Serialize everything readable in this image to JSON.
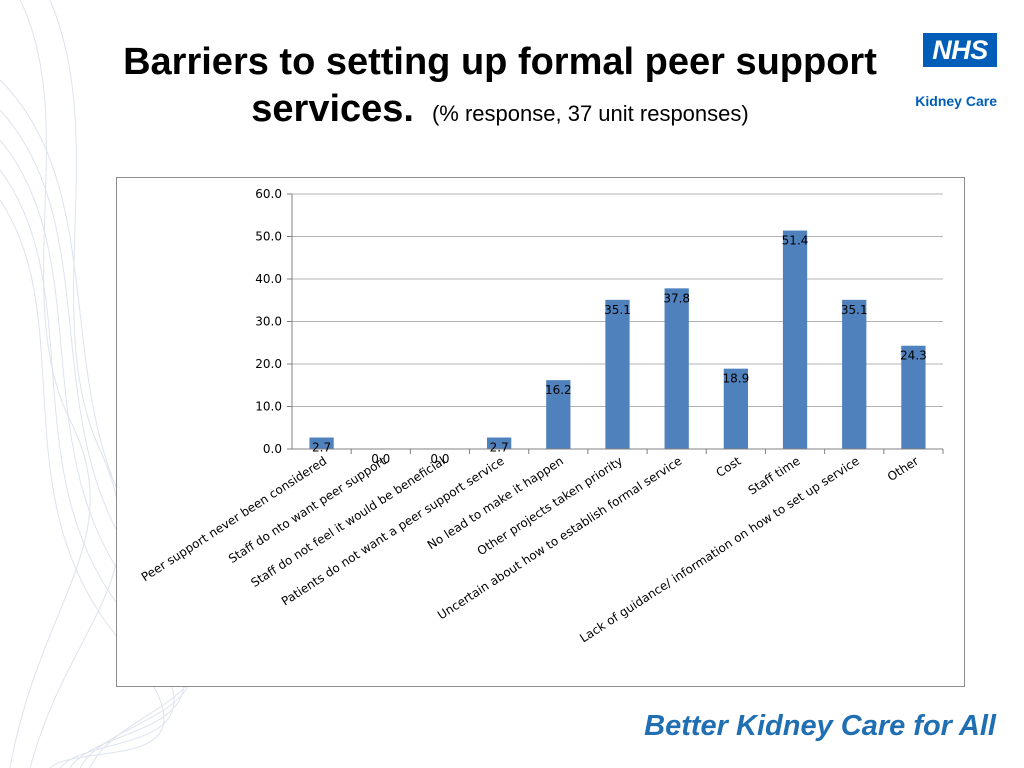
{
  "title": {
    "line1": "Barriers to setting up formal peer support",
    "line2": "services.",
    "subtitle": "(% response, 37 unit responses)"
  },
  "logo": {
    "text": "NHS",
    "subtext": "Kidney Care"
  },
  "footer": {
    "text": "Better Kidney Care for All"
  },
  "colors": {
    "bar": "#4f81bd",
    "brand": "#005eb8",
    "footer": "#1f6fb2",
    "grid": "#b3b3b3"
  },
  "chart_data": {
    "type": "bar",
    "title": "",
    "xlabel": "",
    "ylabel": "",
    "categories": [
      "Peer support never been considered",
      "Staff do nto want peer support",
      "Staff do not feel it would be beneficial",
      "Patients do not want a peer support service",
      "No lead to make it happen",
      "Other projects taken priority",
      "Uncertain about how to establish formal service",
      "Cost",
      "Staff time",
      "Lack of guidance/ information on how to set up service",
      "Other"
    ],
    "values": [
      2.7,
      0.0,
      0.0,
      2.7,
      16.2,
      35.1,
      37.8,
      18.9,
      51.4,
      35.1,
      24.3
    ],
    "value_labels": [
      "2.7",
      "0.0",
      "0.0",
      "2.7",
      "16.2",
      "35.1",
      "37.8",
      "18.9",
      "51.4",
      "35.1",
      "24.3"
    ],
    "y_ticks": [
      "0.0",
      "10.0",
      "20.0",
      "30.0",
      "40.0",
      "50.0",
      "60.0"
    ],
    "ylim": [
      0,
      60
    ],
    "grid": true,
    "legend": "none"
  }
}
